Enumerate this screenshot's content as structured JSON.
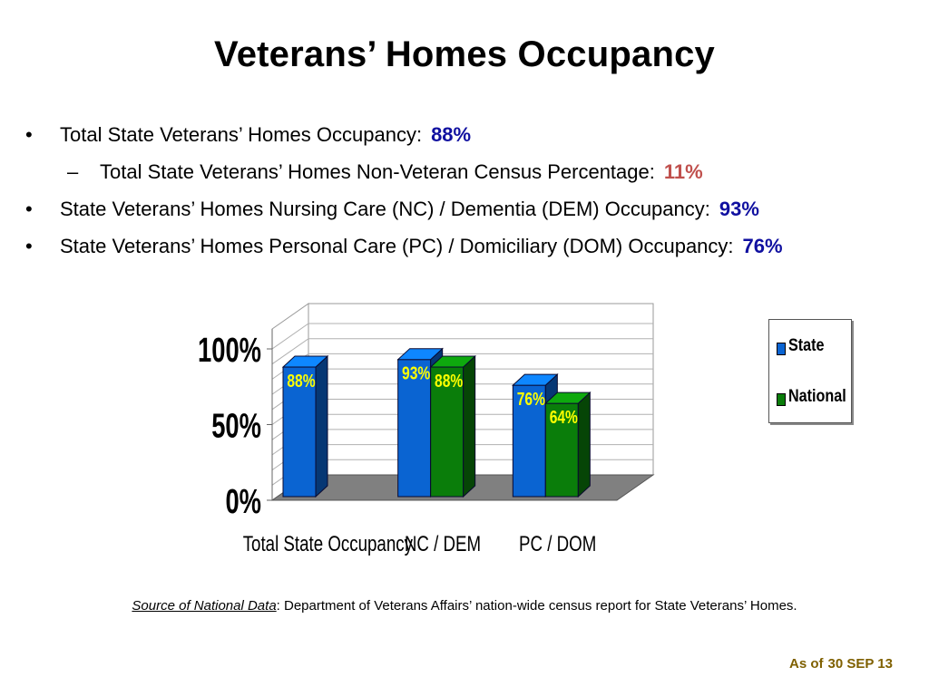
{
  "slide": {
    "title": "Veterans’ Homes Occupancy",
    "bullets": [
      {
        "marker": "•",
        "text": "Total State Veterans’ Homes Occupancy:",
        "value": "88%",
        "value_color": "#1010a0"
      },
      {
        "marker": "–",
        "text": "Total State Veterans’ Homes Non-Veteran Census Percentage:",
        "value": "11%",
        "value_color": "#c0504d"
      },
      {
        "marker": "•",
        "text": "State Veterans’ Homes Nursing Care (NC) / Dementia (DEM) Occupancy:",
        "value": "93%",
        "value_color": "#1010a0"
      },
      {
        "marker": "•",
        "text": "State Veterans’ Homes Personal Care (PC) / Domiciliary (DOM) Occupancy:",
        "value": "76%",
        "value_color": "#1010a0"
      }
    ],
    "source": {
      "label": "Source of National Data",
      "text": ":  Department of Veterans Affairs’ nation-wide census report for State Veterans’ Homes."
    },
    "as_of": {
      "label": "As of",
      "date": "30 SEP 13"
    }
  },
  "chart_data": {
    "type": "bar",
    "style": "3d-clustered-column",
    "categories": [
      "Total State Occupancy",
      "NC / DEM",
      "PC / DOM"
    ],
    "series": [
      {
        "name": "State",
        "values": [
          88,
          93,
          76
        ],
        "labels": [
          "88%",
          "93%",
          "76%"
        ],
        "color": "#0a64d2"
      },
      {
        "name": "National",
        "values": [
          null,
          88,
          64
        ],
        "labels": [
          null,
          "88%",
          "64%"
        ],
        "color": "#0a7d0a"
      }
    ],
    "ylim": [
      0,
      100
    ],
    "yticks": [
      {
        "value": 0,
        "label": "0%"
      },
      {
        "value": 50,
        "label": "50%"
      },
      {
        "value": 100,
        "label": "100%"
      }
    ],
    "grid": true,
    "legend": "right",
    "data_label_color": "#ffff00",
    "floor_color": "#808080"
  }
}
